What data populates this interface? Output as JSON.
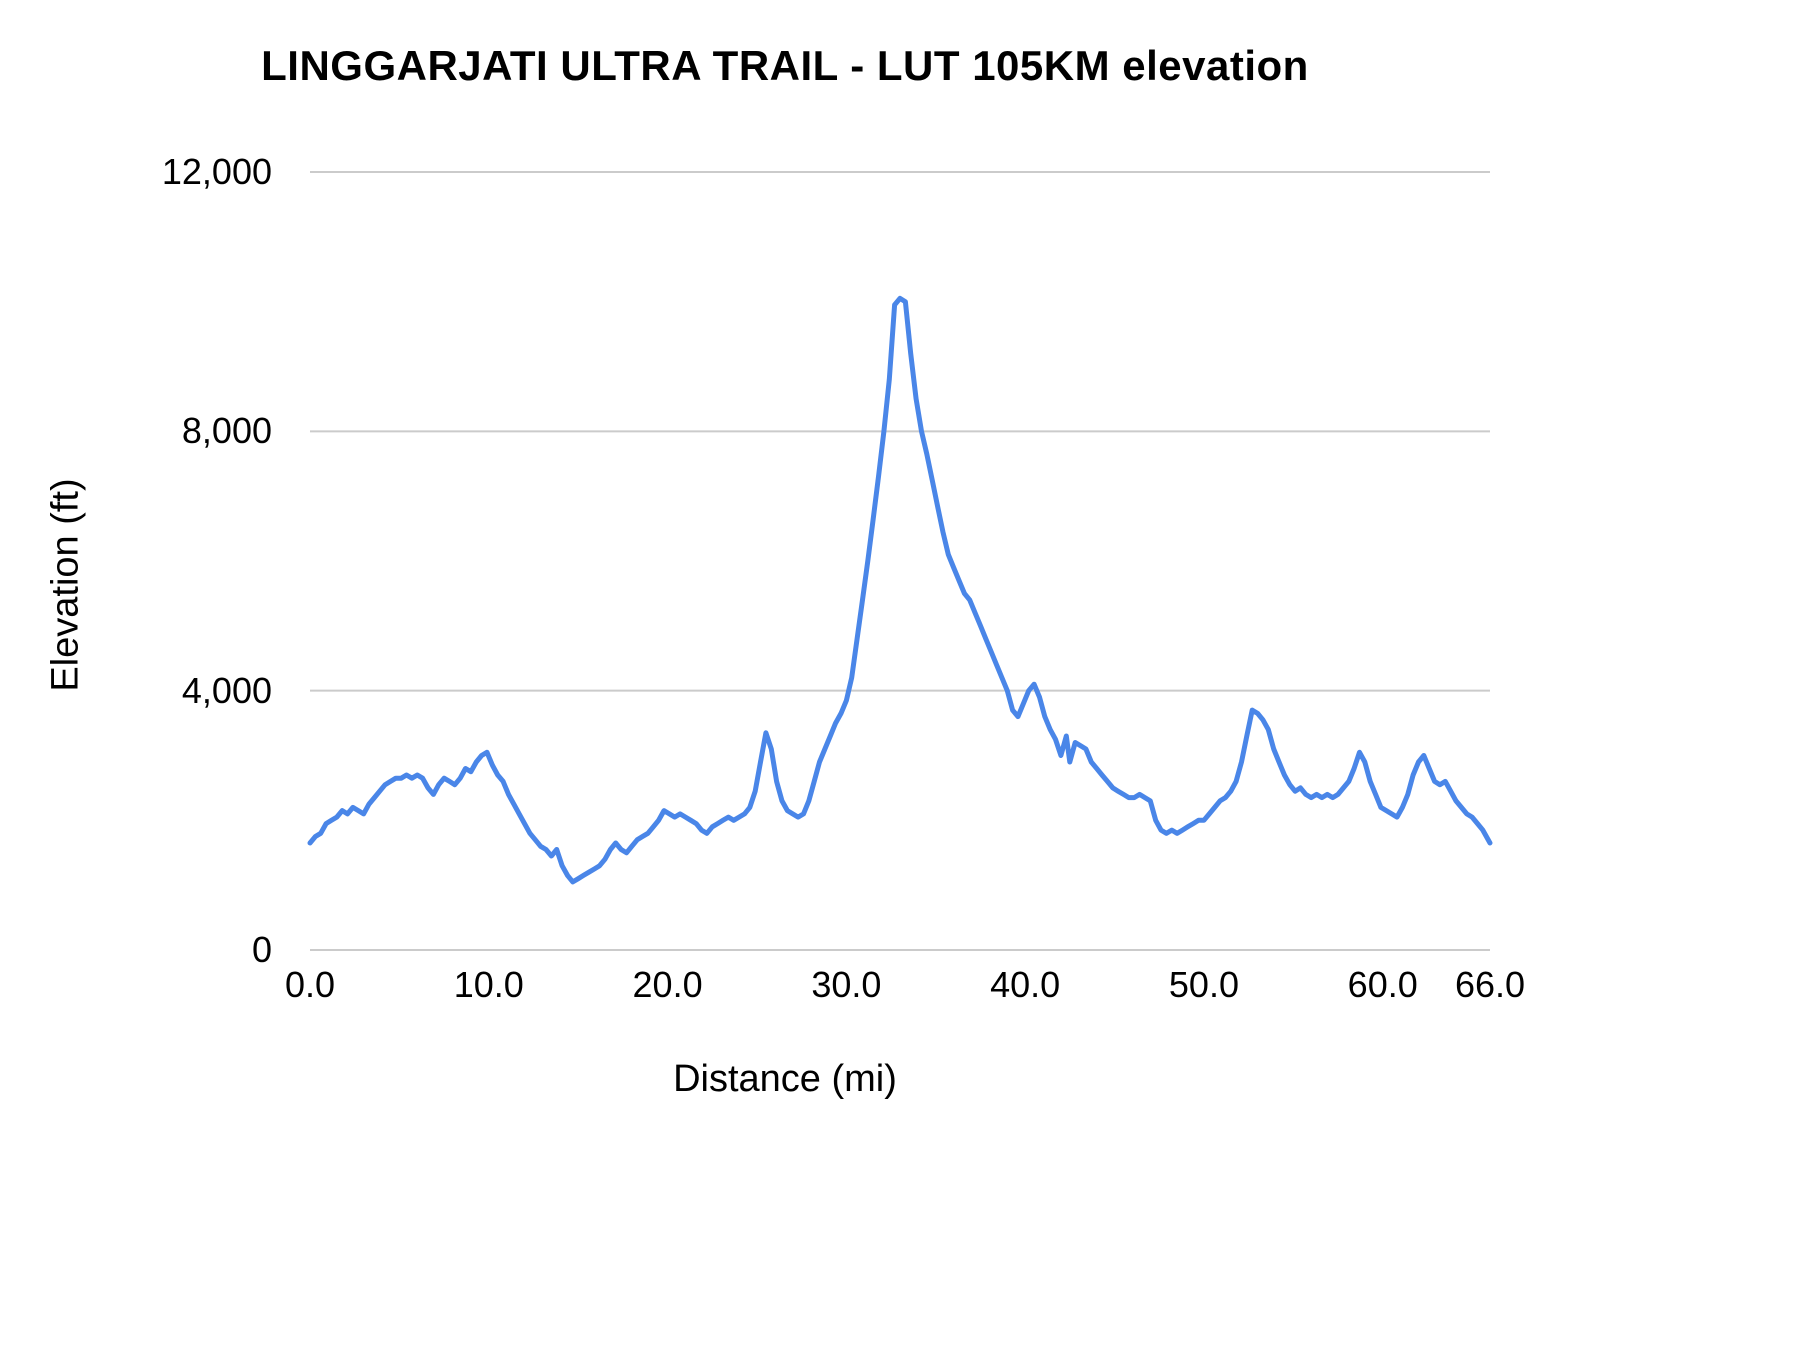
{
  "chart_data": {
    "type": "line",
    "title": "LINGGARJATI ULTRA TRAIL - LUT 105KM elevation",
    "xlabel": "Distance (mi)",
    "ylabel": "Elevation (ft)",
    "xlim": [
      0,
      66
    ],
    "ylim": [
      0,
      12000
    ],
    "grid": true,
    "legend_position": "none",
    "line_color": "#4a86e8",
    "grid_color": "#cbcbcb",
    "yticks": [
      {
        "value": 0,
        "label": "0"
      },
      {
        "value": 4000,
        "label": "4,000"
      },
      {
        "value": 8000,
        "label": "8,000"
      },
      {
        "value": 12000,
        "label": "12,000"
      }
    ],
    "xticks": [
      {
        "value": 0,
        "label": "0.0"
      },
      {
        "value": 10,
        "label": "10.0"
      },
      {
        "value": 20,
        "label": "20.0"
      },
      {
        "value": 30,
        "label": "30.0"
      },
      {
        "value": 40,
        "label": "40.0"
      },
      {
        "value": 50,
        "label": "50.0"
      },
      {
        "value": 60,
        "label": "60.0"
      },
      {
        "value": 66,
        "label": "66.0"
      }
    ],
    "series": [
      {
        "name": "elevation",
        "points": [
          [
            0.0,
            1650
          ],
          [
            0.3,
            1750
          ],
          [
            0.6,
            1800
          ],
          [
            0.9,
            1950
          ],
          [
            1.2,
            2000
          ],
          [
            1.5,
            2050
          ],
          [
            1.8,
            2150
          ],
          [
            2.1,
            2100
          ],
          [
            2.4,
            2200
          ],
          [
            2.7,
            2150
          ],
          [
            3.0,
            2100
          ],
          [
            3.3,
            2250
          ],
          [
            3.6,
            2350
          ],
          [
            3.9,
            2450
          ],
          [
            4.2,
            2550
          ],
          [
            4.5,
            2600
          ],
          [
            4.8,
            2650
          ],
          [
            5.1,
            2650
          ],
          [
            5.4,
            2700
          ],
          [
            5.7,
            2650
          ],
          [
            6.0,
            2700
          ],
          [
            6.3,
            2650
          ],
          [
            6.6,
            2500
          ],
          [
            6.9,
            2400
          ],
          [
            7.2,
            2550
          ],
          [
            7.5,
            2650
          ],
          [
            7.8,
            2600
          ],
          [
            8.1,
            2550
          ],
          [
            8.4,
            2650
          ],
          [
            8.7,
            2800
          ],
          [
            9.0,
            2750
          ],
          [
            9.3,
            2900
          ],
          [
            9.6,
            3000
          ],
          [
            9.9,
            3050
          ],
          [
            10.2,
            2850
          ],
          [
            10.5,
            2700
          ],
          [
            10.8,
            2600
          ],
          [
            11.1,
            2400
          ],
          [
            11.4,
            2250
          ],
          [
            11.7,
            2100
          ],
          [
            12.0,
            1950
          ],
          [
            12.3,
            1800
          ],
          [
            12.6,
            1700
          ],
          [
            12.9,
            1600
          ],
          [
            13.2,
            1550
          ],
          [
            13.5,
            1450
          ],
          [
            13.8,
            1550
          ],
          [
            14.1,
            1300
          ],
          [
            14.4,
            1150
          ],
          [
            14.7,
            1050
          ],
          [
            15.0,
            1100
          ],
          [
            15.3,
            1150
          ],
          [
            15.6,
            1200
          ],
          [
            15.9,
            1250
          ],
          [
            16.2,
            1300
          ],
          [
            16.5,
            1400
          ],
          [
            16.8,
            1550
          ],
          [
            17.1,
            1650
          ],
          [
            17.4,
            1550
          ],
          [
            17.7,
            1500
          ],
          [
            18.0,
            1600
          ],
          [
            18.3,
            1700
          ],
          [
            18.6,
            1750
          ],
          [
            18.9,
            1800
          ],
          [
            19.2,
            1900
          ],
          [
            19.5,
            2000
          ],
          [
            19.8,
            2150
          ],
          [
            20.1,
            2100
          ],
          [
            20.4,
            2050
          ],
          [
            20.7,
            2100
          ],
          [
            21.0,
            2050
          ],
          [
            21.3,
            2000
          ],
          [
            21.6,
            1950
          ],
          [
            21.9,
            1850
          ],
          [
            22.2,
            1800
          ],
          [
            22.5,
            1900
          ],
          [
            22.8,
            1950
          ],
          [
            23.1,
            2000
          ],
          [
            23.4,
            2050
          ],
          [
            23.7,
            2000
          ],
          [
            24.0,
            2050
          ],
          [
            24.3,
            2100
          ],
          [
            24.6,
            2200
          ],
          [
            24.9,
            2450
          ],
          [
            25.2,
            2900
          ],
          [
            25.5,
            3350
          ],
          [
            25.8,
            3100
          ],
          [
            26.1,
            2600
          ],
          [
            26.4,
            2300
          ],
          [
            26.7,
            2150
          ],
          [
            27.0,
            2100
          ],
          [
            27.3,
            2050
          ],
          [
            27.6,
            2100
          ],
          [
            27.9,
            2300
          ],
          [
            28.2,
            2600
          ],
          [
            28.5,
            2900
          ],
          [
            28.8,
            3100
          ],
          [
            29.1,
            3300
          ],
          [
            29.4,
            3500
          ],
          [
            29.7,
            3650
          ],
          [
            30.0,
            3850
          ],
          [
            30.3,
            4200
          ],
          [
            30.6,
            4800
          ],
          [
            30.9,
            5400
          ],
          [
            31.2,
            6000
          ],
          [
            31.5,
            6650
          ],
          [
            31.8,
            7300
          ],
          [
            32.1,
            8000
          ],
          [
            32.4,
            8800
          ],
          [
            32.7,
            9950
          ],
          [
            33.0,
            10050
          ],
          [
            33.3,
            10000
          ],
          [
            33.6,
            9200
          ],
          [
            33.9,
            8500
          ],
          [
            34.2,
            8000
          ],
          [
            34.5,
            7650
          ],
          [
            34.8,
            7250
          ],
          [
            35.1,
            6850
          ],
          [
            35.4,
            6450
          ],
          [
            35.7,
            6100
          ],
          [
            36.0,
            5900
          ],
          [
            36.3,
            5700
          ],
          [
            36.6,
            5500
          ],
          [
            36.9,
            5400
          ],
          [
            37.2,
            5200
          ],
          [
            37.5,
            5000
          ],
          [
            37.8,
            4800
          ],
          [
            38.1,
            4600
          ],
          [
            38.4,
            4400
          ],
          [
            38.7,
            4200
          ],
          [
            39.0,
            4000
          ],
          [
            39.3,
            3700
          ],
          [
            39.6,
            3600
          ],
          [
            39.9,
            3800
          ],
          [
            40.2,
            4000
          ],
          [
            40.5,
            4100
          ],
          [
            40.8,
            3900
          ],
          [
            41.1,
            3600
          ],
          [
            41.4,
            3400
          ],
          [
            41.7,
            3250
          ],
          [
            42.0,
            3000
          ],
          [
            42.3,
            3300
          ],
          [
            42.5,
            2900
          ],
          [
            42.8,
            3200
          ],
          [
            43.1,
            3150
          ],
          [
            43.4,
            3100
          ],
          [
            43.7,
            2900
          ],
          [
            44.0,
            2800
          ],
          [
            44.3,
            2700
          ],
          [
            44.6,
            2600
          ],
          [
            44.9,
            2500
          ],
          [
            45.2,
            2450
          ],
          [
            45.5,
            2400
          ],
          [
            45.8,
            2350
          ],
          [
            46.1,
            2350
          ],
          [
            46.4,
            2400
          ],
          [
            46.7,
            2350
          ],
          [
            47.0,
            2300
          ],
          [
            47.3,
            2000
          ],
          [
            47.6,
            1850
          ],
          [
            47.9,
            1800
          ],
          [
            48.2,
            1850
          ],
          [
            48.5,
            1800
          ],
          [
            48.8,
            1850
          ],
          [
            49.1,
            1900
          ],
          [
            49.4,
            1950
          ],
          [
            49.7,
            2000
          ],
          [
            50.0,
            2000
          ],
          [
            50.3,
            2100
          ],
          [
            50.6,
            2200
          ],
          [
            50.9,
            2300
          ],
          [
            51.2,
            2350
          ],
          [
            51.5,
            2450
          ],
          [
            51.8,
            2600
          ],
          [
            52.1,
            2900
          ],
          [
            52.4,
            3300
          ],
          [
            52.7,
            3700
          ],
          [
            53.0,
            3650
          ],
          [
            53.3,
            3550
          ],
          [
            53.6,
            3400
          ],
          [
            53.9,
            3100
          ],
          [
            54.2,
            2900
          ],
          [
            54.5,
            2700
          ],
          [
            54.8,
            2550
          ],
          [
            55.1,
            2450
          ],
          [
            55.4,
            2500
          ],
          [
            55.7,
            2400
          ],
          [
            56.0,
            2350
          ],
          [
            56.3,
            2400
          ],
          [
            56.6,
            2350
          ],
          [
            56.9,
            2400
          ],
          [
            57.2,
            2350
          ],
          [
            57.5,
            2400
          ],
          [
            57.8,
            2500
          ],
          [
            58.1,
            2600
          ],
          [
            58.4,
            2800
          ],
          [
            58.7,
            3050
          ],
          [
            59.0,
            2900
          ],
          [
            59.3,
            2600
          ],
          [
            59.6,
            2400
          ],
          [
            59.9,
            2200
          ],
          [
            60.2,
            2150
          ],
          [
            60.5,
            2100
          ],
          [
            60.8,
            2050
          ],
          [
            61.1,
            2200
          ],
          [
            61.4,
            2400
          ],
          [
            61.7,
            2700
          ],
          [
            62.0,
            2900
          ],
          [
            62.3,
            3000
          ],
          [
            62.6,
            2800
          ],
          [
            62.9,
            2600
          ],
          [
            63.2,
            2550
          ],
          [
            63.5,
            2600
          ],
          [
            63.8,
            2450
          ],
          [
            64.1,
            2300
          ],
          [
            64.4,
            2200
          ],
          [
            64.7,
            2100
          ],
          [
            65.0,
            2050
          ],
          [
            65.3,
            1950
          ],
          [
            65.6,
            1850
          ],
          [
            66.0,
            1650
          ]
        ]
      }
    ]
  }
}
